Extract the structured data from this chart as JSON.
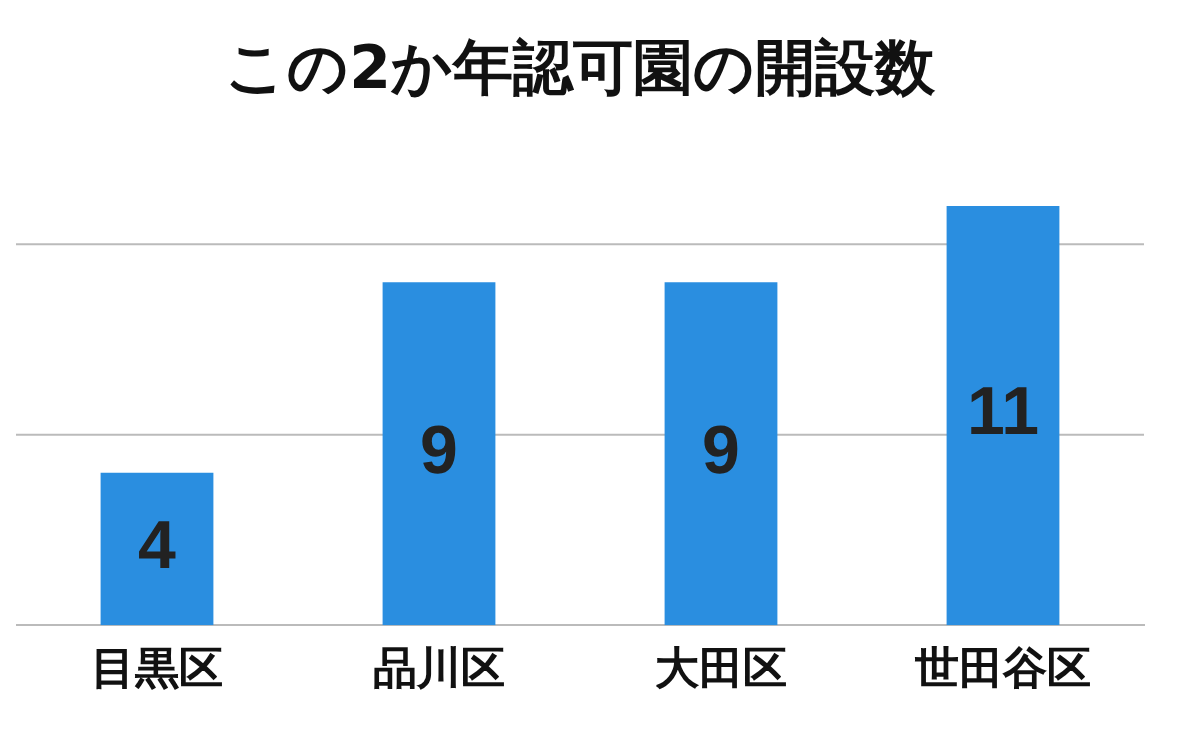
{
  "chart_data": {
    "type": "bar",
    "title": "この2か年認可園の開設数",
    "categories": [
      "目黒区",
      "品川区",
      "大田区",
      "世田谷区"
    ],
    "values": [
      4,
      9,
      9,
      11
    ],
    "color": "#2a8ee0",
    "ref_lines": [
      {
        "axis": "y",
        "value": 5,
        "color": "#bbbbbb"
      },
      {
        "axis": "y",
        "value": 10,
        "color": "#bbbbbb"
      }
    ],
    "tick_labels": "x",
    "data_labels": true
  }
}
